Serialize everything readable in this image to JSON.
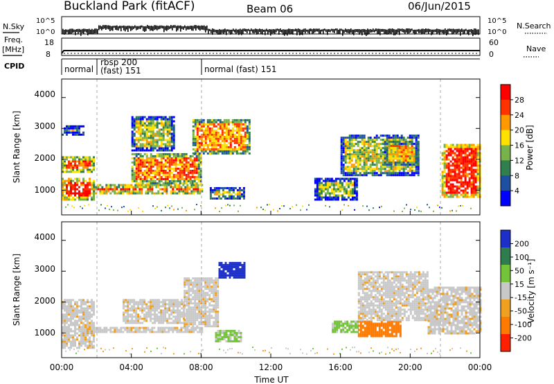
{
  "header": {
    "site": "Buckland Park (fitACF)",
    "beam": "Beam 06",
    "date": "06/Jun/2015"
  },
  "strips": {
    "nsky": {
      "label": "N.Sky",
      "ticks": [
        "10^5",
        "10^0"
      ]
    },
    "nsearch": {
      "label": "N.Search",
      "ticks": [
        "10^5",
        "10^0"
      ]
    },
    "freq": {
      "label1": "Freq.",
      "label2": "[MHz]",
      "ticks": [
        "18",
        "8"
      ]
    },
    "nave": {
      "label": "Nave",
      "ticks": [
        "60",
        "0"
      ]
    },
    "cpid": {
      "label": "CPID",
      "segments": [
        "normal",
        "rbsp 200",
        "(fast) 151",
        "normal (fast) 151"
      ]
    }
  },
  "power": {
    "ylabel": "Slant Range [km]",
    "yticks": [
      "4000",
      "3000",
      "2000",
      "1000"
    ],
    "colorbar_label": "Power [dB]",
    "colorbar_ticks": [
      "28",
      "24",
      "20",
      "16",
      "12",
      "8",
      "4"
    ]
  },
  "velocity": {
    "ylabel": "Slant Range [km]",
    "yticks": [
      "4000",
      "3000",
      "2000",
      "1000"
    ],
    "colorbar_label": "Velocity [m s⁻¹]",
    "colorbar_ticks": [
      "200",
      "100",
      "50",
      "15",
      "-15",
      "-50",
      "-100",
      "-200"
    ]
  },
  "xaxis": {
    "ticks": [
      "00:00",
      "04:00",
      "08:00",
      "12:00",
      "16:00",
      "20:00",
      "00:00"
    ],
    "label": "Time UT"
  },
  "chart_data": [
    {
      "type": "heatmap",
      "title": "Power",
      "xlabel": "Time UT",
      "ylabel": "Slant Range [km]",
      "xlim": [
        0,
        24
      ],
      "ylim": [
        200,
        4600
      ],
      "colorbar": {
        "label": "Power [dB]",
        "range": [
          0,
          32
        ],
        "ticks": [
          4,
          8,
          12,
          16,
          20,
          24,
          28
        ]
      },
      "regions": [
        {
          "t0": 0.0,
          "t1": 1.8,
          "r0": 700,
          "r1": 1400,
          "level": 0.9
        },
        {
          "t0": 0.0,
          "t1": 1.8,
          "r0": 1600,
          "r1": 2100,
          "level": 0.8
        },
        {
          "t0": 0.0,
          "t1": 1.2,
          "r0": 2800,
          "r1": 3100,
          "level": 0.45
        },
        {
          "t0": 1.8,
          "t1": 8.0,
          "r0": 900,
          "r1": 1200,
          "level": 0.85
        },
        {
          "t0": 4.0,
          "t1": 8.0,
          "r0": 1200,
          "r1": 2200,
          "level": 0.75
        },
        {
          "t0": 4.0,
          "t1": 6.5,
          "r0": 2300,
          "r1": 3400,
          "level": 0.5
        },
        {
          "t0": 7.5,
          "t1": 10.8,
          "r0": 2200,
          "r1": 3300,
          "level": 0.7
        },
        {
          "t0": 8.5,
          "t1": 10.5,
          "r0": 700,
          "r1": 1100,
          "level": 0.55
        },
        {
          "t0": 14.5,
          "t1": 17.0,
          "r0": 700,
          "r1": 1400,
          "level": 0.45
        },
        {
          "t0": 16.0,
          "t1": 20.5,
          "r0": 1500,
          "r1": 2800,
          "level": 0.5
        },
        {
          "t0": 18.5,
          "t1": 20.5,
          "r0": 1800,
          "r1": 2600,
          "level": 0.65
        },
        {
          "t0": 21.8,
          "t1": 24.0,
          "r0": 800,
          "r1": 2500,
          "level": 0.9
        }
      ]
    },
    {
      "type": "heatmap",
      "title": "Velocity",
      "xlabel": "Time UT",
      "ylabel": "Slant Range [km]",
      "xlim": [
        0,
        24
      ],
      "ylim": [
        200,
        4600
      ],
      "colorbar": {
        "label": "Velocity [m s⁻¹]",
        "range": [
          -250,
          250
        ],
        "ticks": [
          200,
          100,
          50,
          15,
          -15,
          -50,
          -100,
          -200
        ]
      },
      "regions": [
        {
          "t0": 0.0,
          "t1": 1.8,
          "r0": 500,
          "r1": 2100,
          "value": 0
        },
        {
          "t0": 1.8,
          "t1": 8.0,
          "r0": 1000,
          "r1": 1200,
          "value": 0
        },
        {
          "t0": 3.5,
          "t1": 7.0,
          "r0": 1300,
          "r1": 2100,
          "value": 0
        },
        {
          "t0": 7.0,
          "t1": 9.0,
          "r0": 1200,
          "r1": 2800,
          "value": 0
        },
        {
          "t0": 9.0,
          "t1": 10.5,
          "r0": 2800,
          "r1": 3300,
          "value": 170
        },
        {
          "t0": 8.8,
          "t1": 10.3,
          "r0": 700,
          "r1": 1100,
          "value": 40
        },
        {
          "t0": 15.5,
          "t1": 17.0,
          "r0": 1000,
          "r1": 1400,
          "value": 40
        },
        {
          "t0": 17.0,
          "t1": 19.5,
          "r0": 900,
          "r1": 1400,
          "value": -80
        },
        {
          "t0": 17.0,
          "t1": 21.0,
          "r0": 1400,
          "r1": 3000,
          "value": 0
        },
        {
          "t0": 21.0,
          "t1": 24.0,
          "r0": 1000,
          "r1": 2500,
          "value": 0
        }
      ]
    }
  ]
}
